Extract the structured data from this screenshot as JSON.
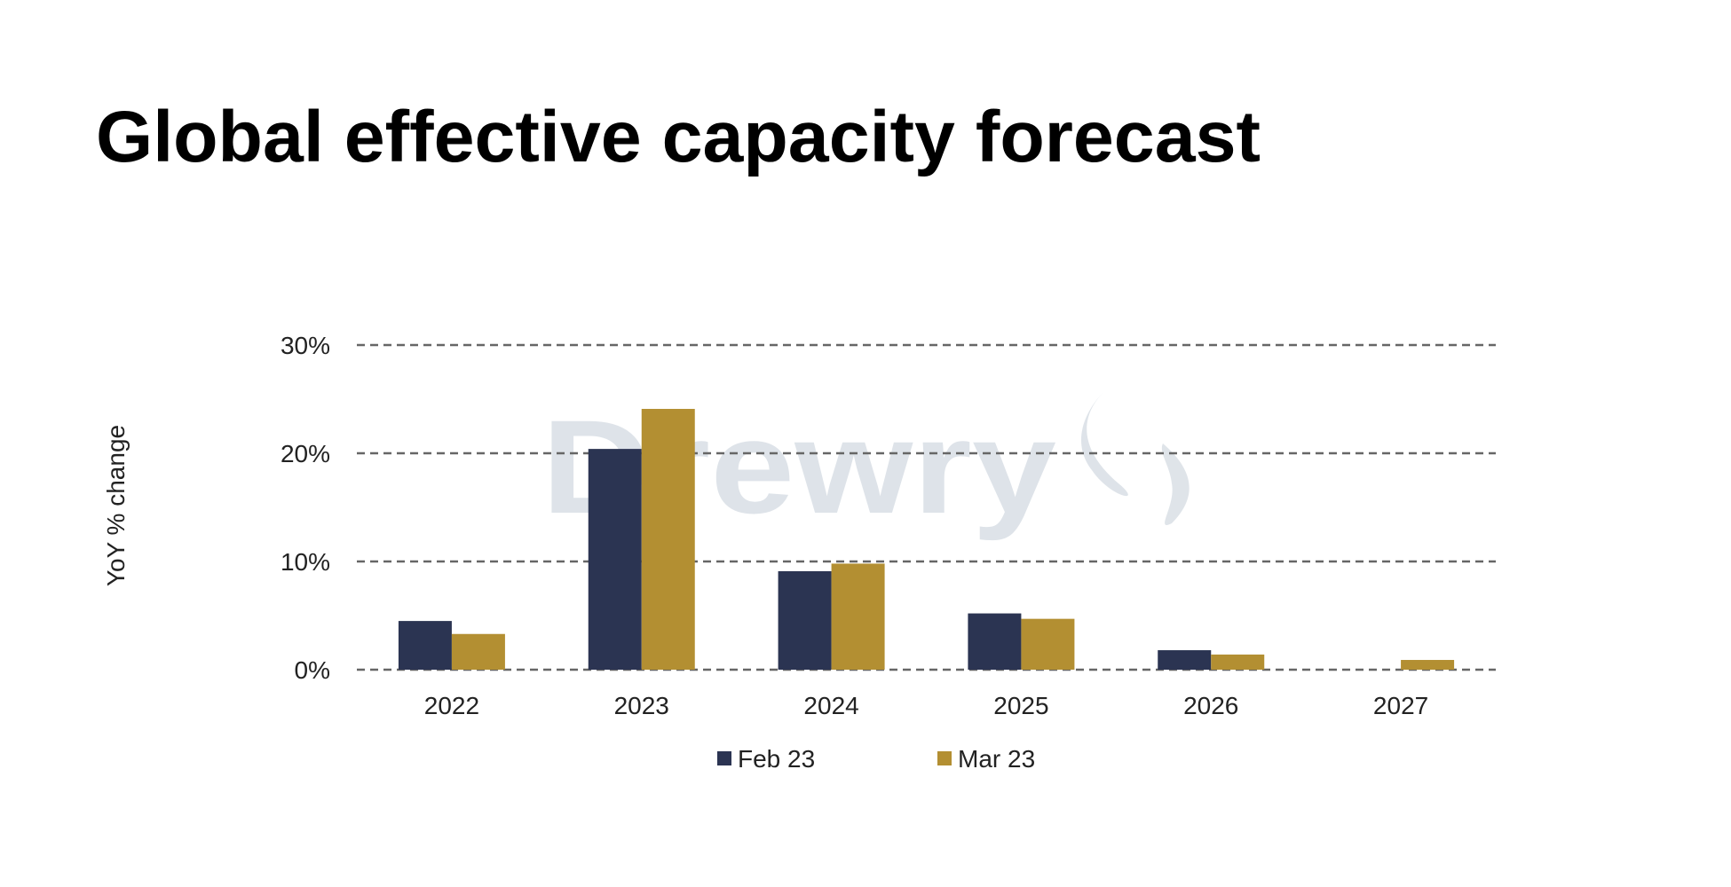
{
  "chart_data": {
    "type": "bar",
    "title": "Global effective capacity forecast",
    "xlabel": "",
    "ylabel": "YoY % change",
    "ylim": [
      0,
      30
    ],
    "yticks": [
      0,
      10,
      20,
      30
    ],
    "ytick_labels": [
      "0%",
      "10%",
      "20%",
      "30%"
    ],
    "grid": true,
    "legend_position": "bottom",
    "watermark": "Drewry",
    "categories": [
      "2022",
      "2023",
      "2024",
      "2025",
      "2026",
      "2027"
    ],
    "series": [
      {
        "name": "Feb 23",
        "color": "#2b3452",
        "values": [
          4.5,
          20.4,
          9.1,
          5.2,
          1.8,
          0
        ]
      },
      {
        "name": "Mar 23",
        "color": "#b38f32",
        "values": [
          3.3,
          24.1,
          9.8,
          4.7,
          1.4,
          0.9
        ]
      }
    ]
  }
}
